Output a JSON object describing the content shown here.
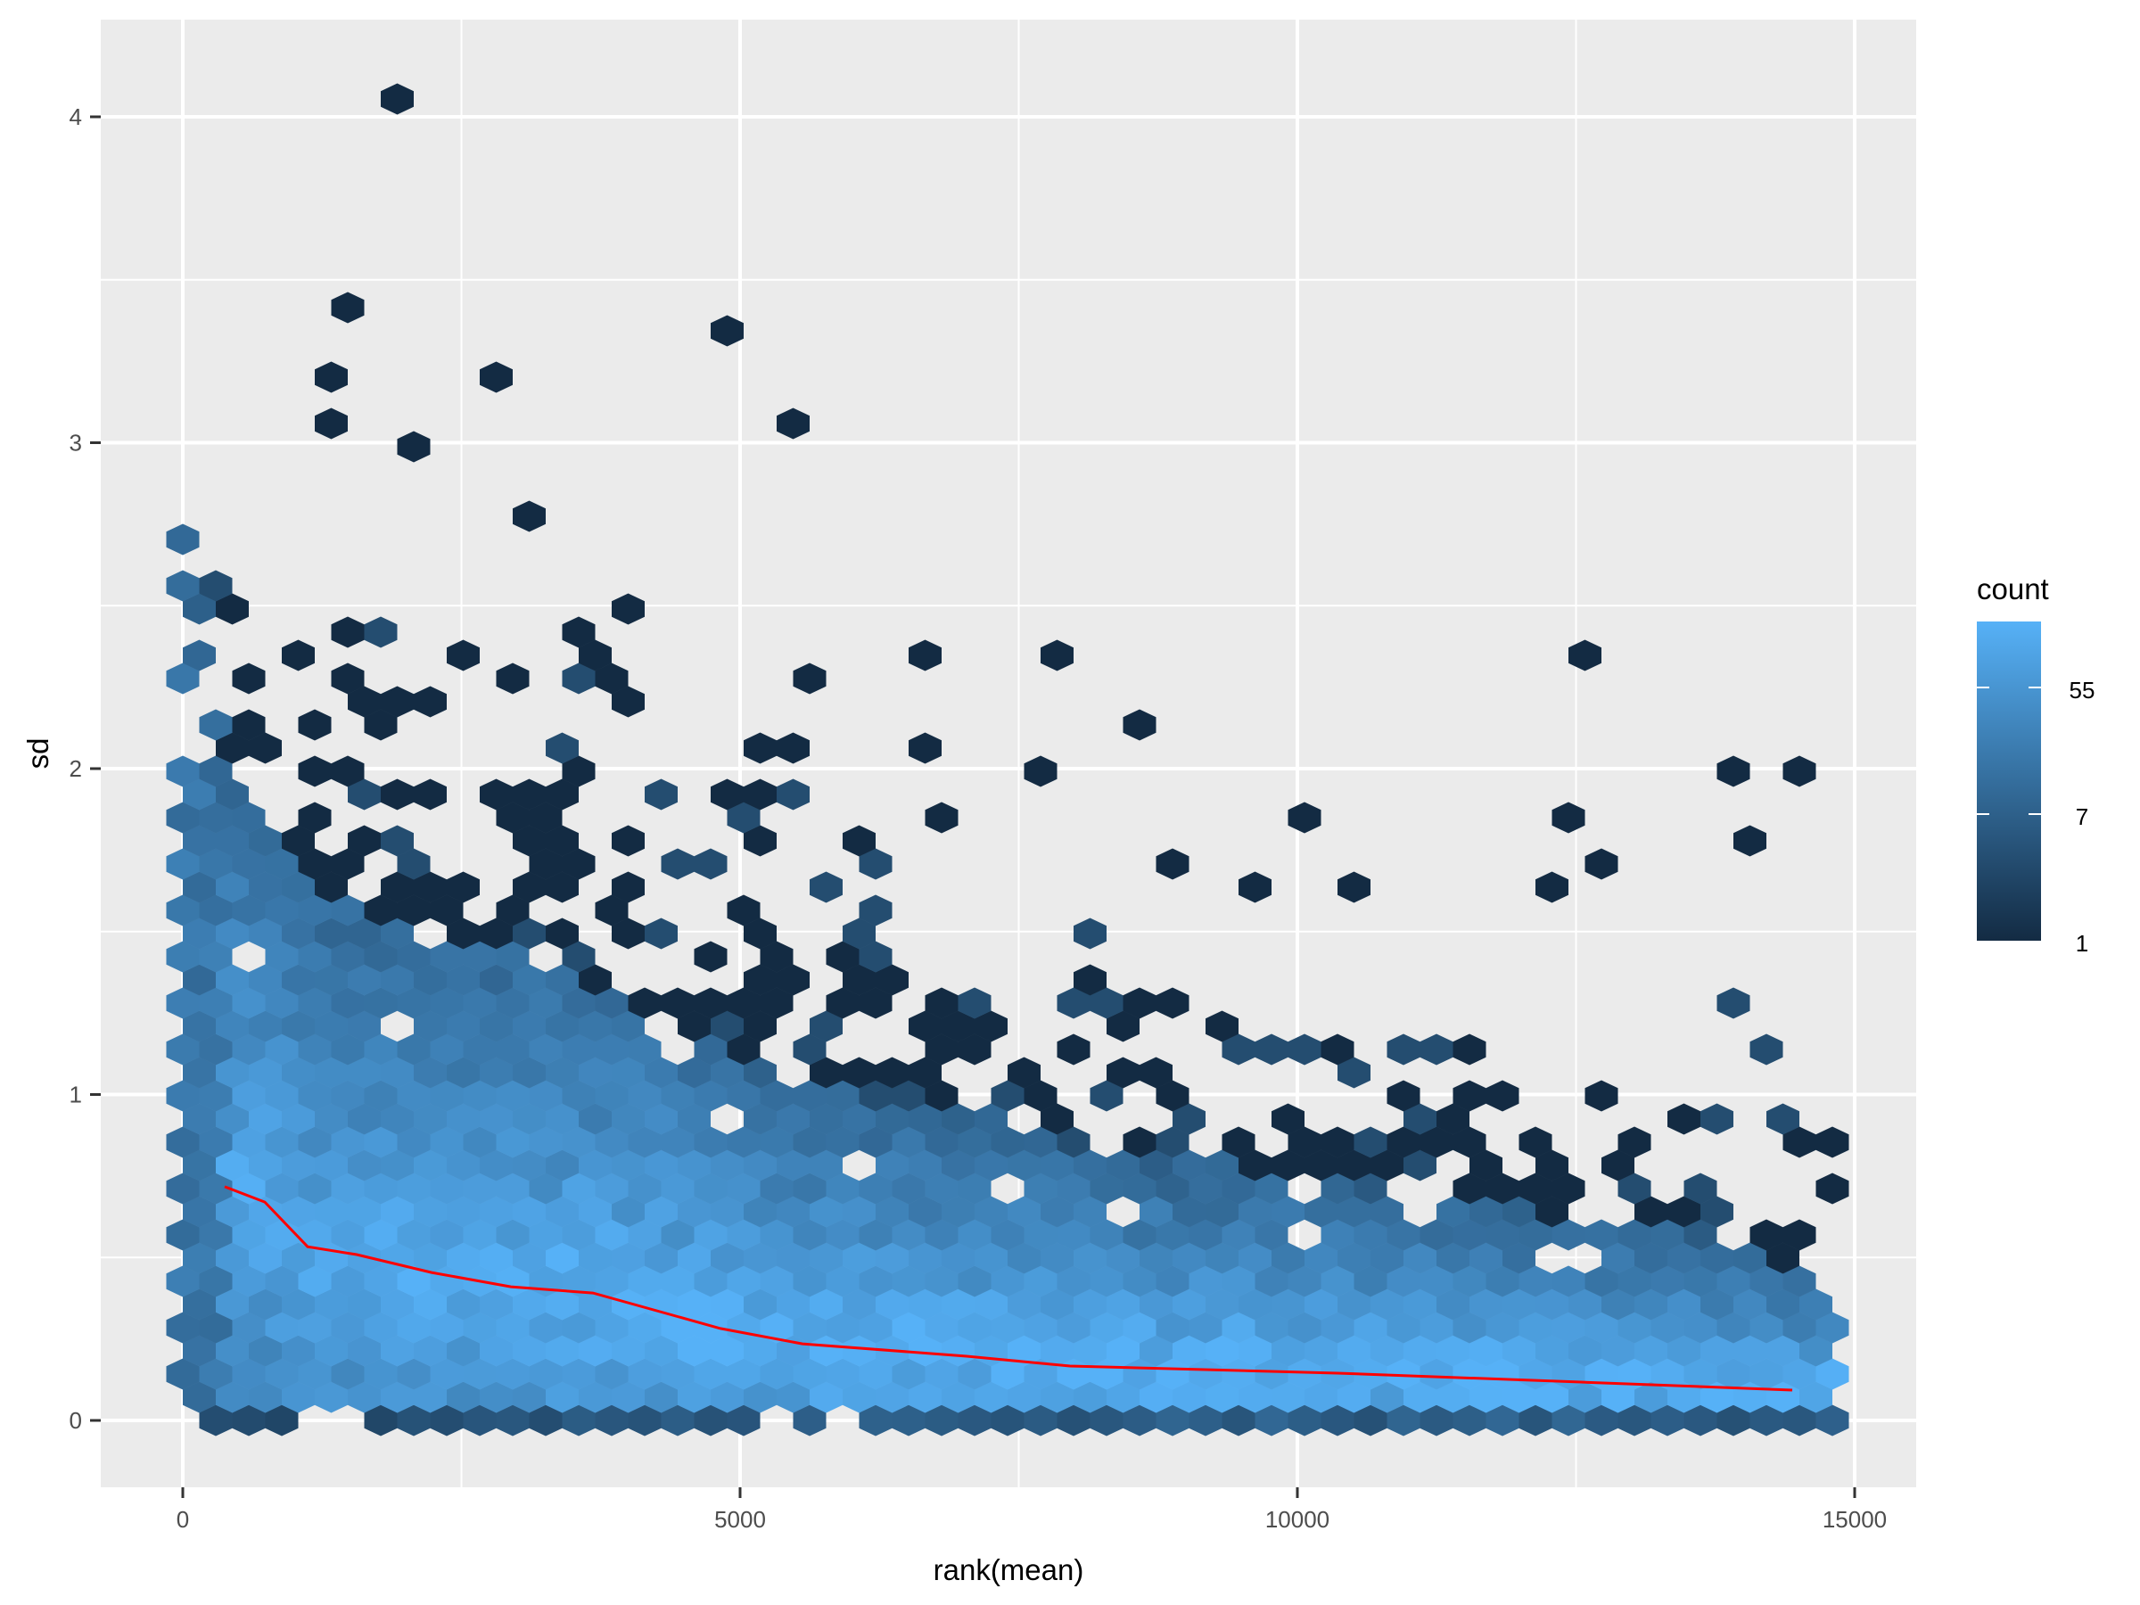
{
  "chart_data": {
    "type": "hexbin",
    "title": "",
    "xlabel": "rank(mean)",
    "ylabel": "sd",
    "xlim": [
      -750,
      15600
    ],
    "ylim": [
      -0.2,
      4.25
    ],
    "x_ticks": [
      0,
      5000,
      10000,
      15000
    ],
    "x_tick_labels": [
      "0",
      "5000",
      "10000",
      "15000"
    ],
    "y_ticks": [
      0,
      1,
      2,
      3,
      4
    ],
    "y_tick_labels": [
      "0",
      "1",
      "2",
      "3",
      "4"
    ],
    "grid": true,
    "legend": {
      "title": "count",
      "position": "right",
      "scale": "log",
      "breaks": [
        1,
        7,
        55
      ],
      "break_labels": [
        "1",
        "7",
        "55"
      ],
      "low_color": "#132B43",
      "high_color": "#56B1F7",
      "max_count": 80
    },
    "trend_line": {
      "color": "#FF0000",
      "points": [
        [
          376,
          0.717
        ],
        [
          736,
          0.67
        ],
        [
          1120,
          0.533
        ],
        [
          1560,
          0.509
        ],
        [
          2232,
          0.454
        ],
        [
          2944,
          0.41
        ],
        [
          3680,
          0.391
        ],
        [
          4824,
          0.282
        ],
        [
          5560,
          0.235
        ],
        [
          7032,
          0.197
        ],
        [
          7960,
          0.167
        ],
        [
          10360,
          0.145
        ],
        [
          12520,
          0.118
        ],
        [
          14440,
          0.093
        ]
      ]
    },
    "outlier_bins": [
      [
        1776,
        4.09
      ],
      [
        1310,
        3.39
      ],
      [
        1184,
        3.18
      ],
      [
        2664,
        3.18
      ],
      [
        1184,
        3.03
      ],
      [
        2072,
        2.96
      ],
      [
        4904,
        3.32
      ],
      [
        5496,
        3.03
      ],
      [
        3168,
        2.75
      ],
      [
        7776,
        2.33
      ],
      [
        12648,
        2.33
      ],
      [
        8616,
        2.12
      ],
      [
        7632,
        1.98
      ],
      [
        13960,
        1.98
      ],
      [
        14464,
        1.98
      ],
      [
        10056,
        1.84
      ],
      [
        12352,
        1.84
      ],
      [
        6808,
        1.84
      ],
      [
        6080,
        1.77
      ],
      [
        14112,
        1.77
      ],
      [
        12800,
        1.7
      ],
      [
        9648,
        1.63
      ],
      [
        10496,
        1.63
      ],
      [
        12208,
        1.63
      ],
      [
        8912,
        1.7
      ],
      [
        5648,
        2.26
      ],
      [
        5240,
        1.91
      ],
      [
        4016,
        2.47
      ],
      [
        3656,
        2.33
      ],
      [
        2520,
        2.33
      ],
      [
        888,
        2.33
      ],
      [
        6672,
        2.33
      ],
      [
        6672,
        2.05
      ],
      [
        5496,
        2.05
      ]
    ],
    "density_profile": {
      "description": "approximate upper extent of filled bins (sd) by rank(mean)",
      "x": [
        0,
        500,
        1000,
        2000,
        3000,
        4000,
        5000,
        6000,
        7000,
        8000,
        9000,
        10000,
        11000,
        12000,
        13000,
        14000,
        14800
      ],
      "core_top_sd": [
        2.8,
        1.9,
        1.7,
        1.5,
        1.45,
        1.3,
        1.1,
        1.0,
        0.95,
        0.85,
        0.8,
        0.75,
        0.7,
        0.65,
        0.6,
        0.55,
        0.42
      ],
      "fringe_top_sd": [
        2.8,
        2.7,
        2.6,
        2.55,
        2.5,
        2.45,
        2.2,
        1.75,
        1.6,
        1.55,
        1.35,
        1.25,
        1.45,
        1.15,
        1.1,
        1.3,
        1.0
      ]
    }
  }
}
